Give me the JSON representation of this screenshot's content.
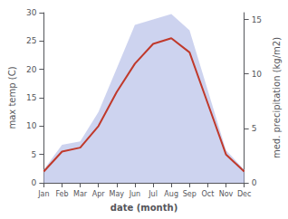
{
  "chart_data": {
    "type": "line",
    "categories": [
      "Jan",
      "Feb",
      "Mar",
      "Apr",
      "May",
      "Jun",
      "Jul",
      "Aug",
      "Sep",
      "Oct",
      "Nov",
      "Dec"
    ],
    "xlabel": "date (month)",
    "ylabel": "max temp (C)",
    "y2label": "med. precipitation (kg/m2)",
    "ylim": [
      0,
      30
    ],
    "yticks": [
      0,
      5,
      10,
      15,
      20,
      25,
      30
    ],
    "y2lim": [
      0,
      15.625
    ],
    "y2ticks": [
      0,
      5,
      10,
      15
    ],
    "grid": false,
    "series": [
      {
        "type": "area",
        "axis": "y2",
        "color": "#b8c0e8",
        "values": [
          1.2,
          3.5,
          3.8,
          6.5,
          10.5,
          14.5,
          15.0,
          15.5,
          14.0,
          8.5,
          3.0,
          1.2
        ]
      },
      {
        "type": "line",
        "color": "#c0392b",
        "values": [
          2.0,
          5.5,
          6.2,
          10.0,
          16.0,
          21.0,
          24.5,
          25.5,
          23.0,
          14.0,
          5.0,
          2.0
        ]
      }
    ]
  }
}
